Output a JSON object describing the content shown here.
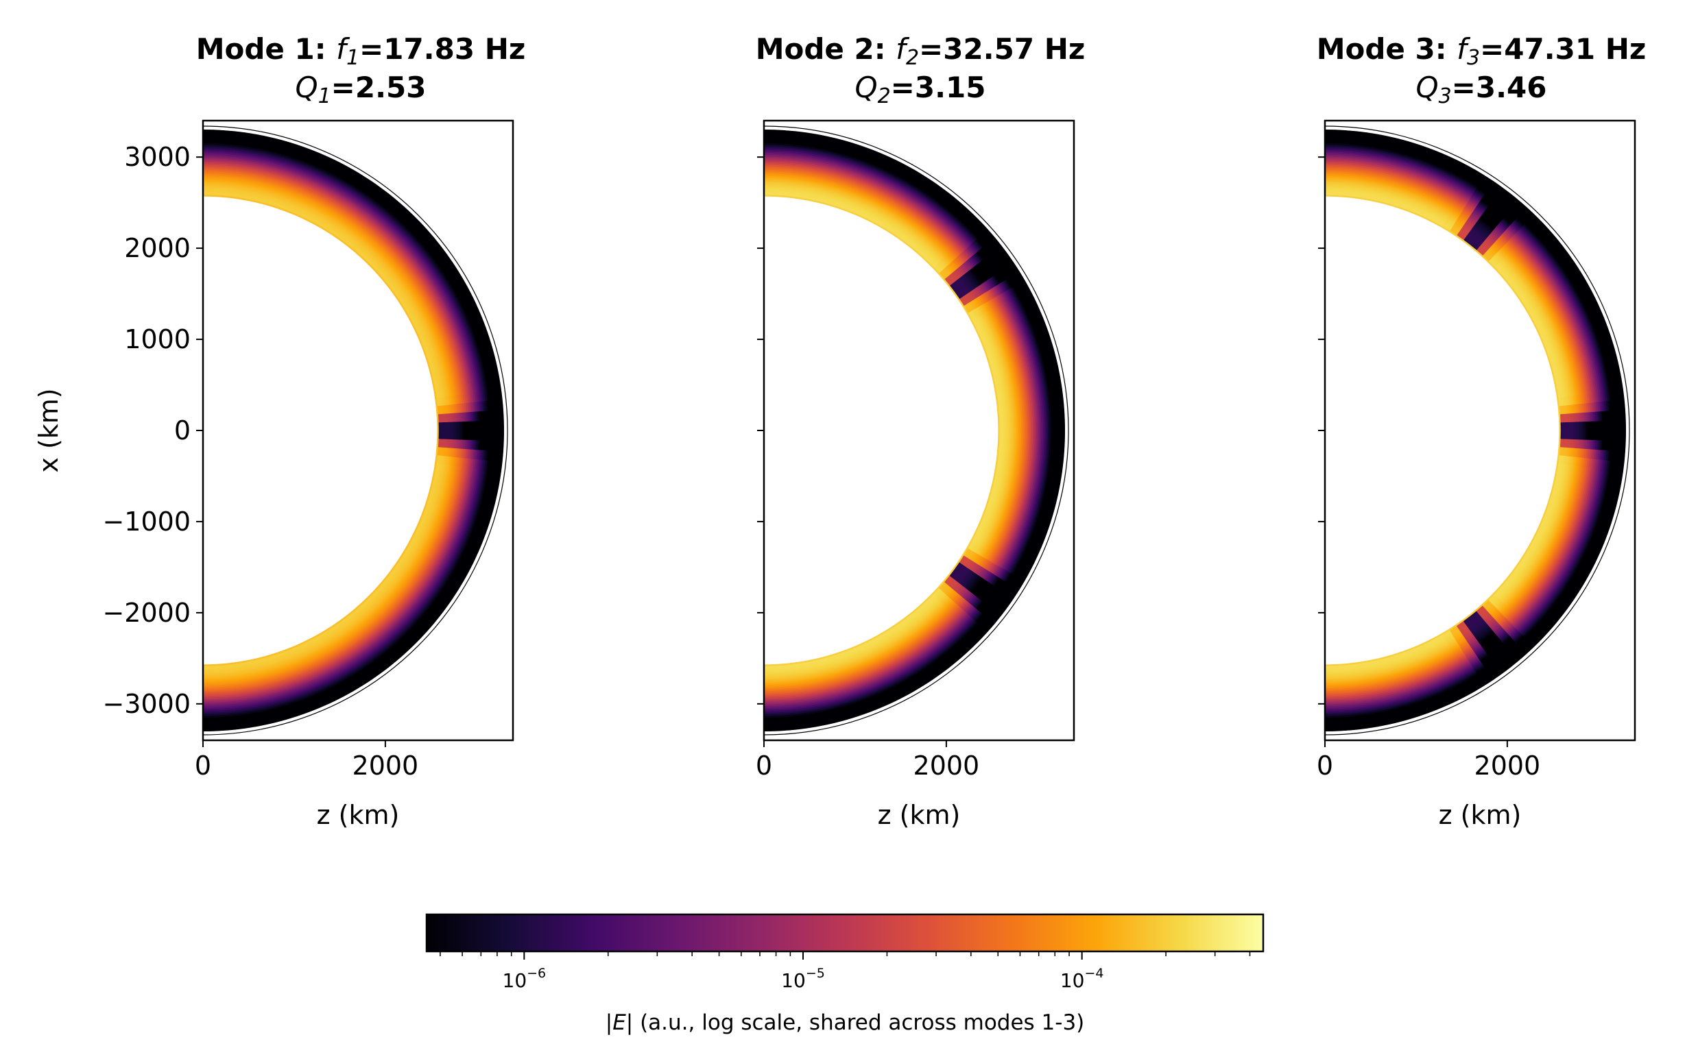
{
  "chart_data": [
    {
      "type": "heatmap",
      "panel": 1,
      "title_prefix": "Mode 1: ",
      "freq_symbol": "f",
      "freq_subscript": "1",
      "freq_value": "=17.83 Hz",
      "q_symbol": "Q",
      "q_subscript": "1",
      "q_value": "=2.53",
      "frequency_hz": 17.83,
      "q_factor": 2.53,
      "xlabel": "z (km)",
      "ylabel": "x (km)",
      "xlim": [
        0,
        3400
      ],
      "ylim": [
        -3400,
        3400
      ],
      "x_ticks": [
        "0",
        "2000"
      ],
      "y_ticks": [
        "3000",
        "2000",
        "1000",
        "0",
        "−1000",
        "−2000",
        "−3000"
      ],
      "radii_km": {
        "inner": 2570,
        "lossy_outer": 3000,
        "outer": 3300
      },
      "node_angles_deg": [
        0
      ],
      "field_inner_log10": -3.55,
      "field_outer_log10": -6.4
    },
    {
      "type": "heatmap",
      "panel": 2,
      "title_prefix": "Mode 2: ",
      "freq_symbol": "f",
      "freq_subscript": "2",
      "freq_value": "=32.57 Hz",
      "q_symbol": "Q",
      "q_subscript": "2",
      "q_value": "=3.15",
      "frequency_hz": 32.57,
      "q_factor": 3.15,
      "xlabel": "z (km)",
      "ylabel": "",
      "xlim": [
        0,
        3400
      ],
      "ylim": [
        -3400,
        3400
      ],
      "x_ticks": [
        "0",
        "2000"
      ],
      "y_ticks": [],
      "radii_km": {
        "inner": 2570,
        "lossy_outer": 3000,
        "outer": 3300
      },
      "node_angles_deg": [
        36,
        -36
      ],
      "field_inner_log10": -3.45,
      "field_outer_log10": -6.4
    },
    {
      "type": "heatmap",
      "panel": 3,
      "title_prefix": "Mode 3: ",
      "freq_symbol": "f",
      "freq_subscript": "3",
      "freq_value": "=47.31 Hz",
      "q_symbol": "Q",
      "q_subscript": "3",
      "q_value": "=3.46",
      "frequency_hz": 47.31,
      "q_factor": 3.46,
      "xlabel": "z (km)",
      "ylabel": "",
      "xlim": [
        0,
        3400
      ],
      "ylim": [
        -3400,
        3400
      ],
      "x_ticks": [
        "0",
        "2000"
      ],
      "y_ticks": [],
      "radii_km": {
        "inner": 2570,
        "lossy_outer": 3000,
        "outer": 3300
      },
      "node_angles_deg": [
        52,
        0,
        -52
      ],
      "field_inner_log10": -3.45,
      "field_outer_log10": -6.4
    }
  ],
  "colorbar": {
    "colormap": "inferno",
    "scale": "log",
    "range_log10": [
      -6.35,
      -3.35
    ],
    "ticks": [
      {
        "base": "10",
        "exp": "−6",
        "log10": -6
      },
      {
        "base": "10",
        "exp": "−5",
        "log10": -5
      },
      {
        "base": "10",
        "exp": "−4",
        "log10": -4
      }
    ],
    "label_pre": "|",
    "label_sym": "E",
    "label_post": "| (a.u., log scale, shared across modes 1-3)"
  }
}
